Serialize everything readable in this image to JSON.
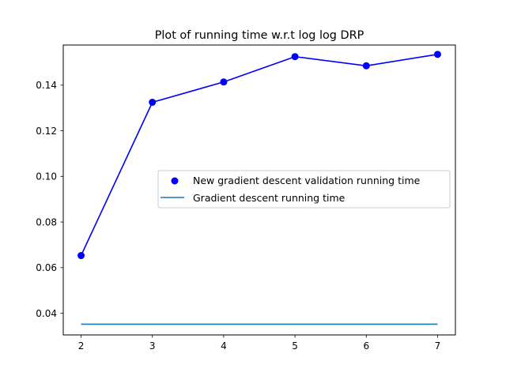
{
  "chart_data": {
    "type": "line",
    "title": "Plot of running time w.r.t log log DRP",
    "xlabel": "",
    "ylabel": "",
    "x": [
      2,
      3,
      4,
      5,
      6,
      7
    ],
    "xlim": [
      1.75,
      7.25
    ],
    "ylim": [
      0.0305,
      0.1576
    ],
    "x_ticks": [
      2,
      3,
      4,
      5,
      6,
      7
    ],
    "x_tick_labels": [
      "2",
      "3",
      "4",
      "5",
      "6",
      "7"
    ],
    "y_ticks": [
      0.04,
      0.06,
      0.08,
      0.1,
      0.12,
      0.14
    ],
    "y_tick_labels": [
      "0.04",
      "0.06",
      "0.08",
      "0.10",
      "0.12",
      "0.14"
    ],
    "grid": false,
    "legend_position": "center-right",
    "series": [
      {
        "name": "New gradient descent validation running time",
        "values": [
          0.0653,
          0.1325,
          0.1414,
          0.1525,
          0.1485,
          0.1535
        ],
        "color": "#0000ff",
        "style": "line-with-circle-markers"
      },
      {
        "name": "Gradient descent running time",
        "values": [
          0.0352,
          0.0352,
          0.0352,
          0.0352,
          0.0352,
          0.0352
        ],
        "color": "#1f77b4",
        "style": "line"
      }
    ]
  }
}
